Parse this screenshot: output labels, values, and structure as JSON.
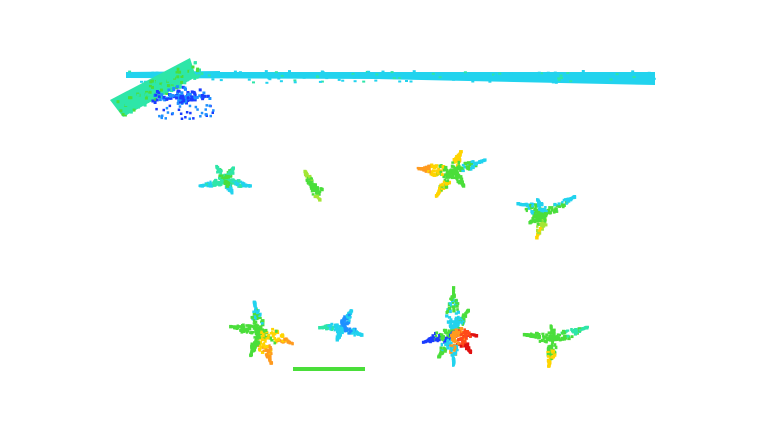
{
  "view": {
    "background": "#ffffff",
    "colormap": "jet",
    "colormap_colors": [
      "#1a3cff",
      "#1e90ff",
      "#22d3ee",
      "#2ee6a8",
      "#4ade3a",
      "#a3e635",
      "#ffd400",
      "#ff9a1f",
      "#ff4a1a",
      "#e01010"
    ]
  },
  "objects": [
    {
      "kind": "bar",
      "label": "long-bar",
      "colors": [
        "#22d3ee",
        "#2ee6a8"
      ]
    },
    {
      "kind": "slab",
      "label": "tilted-slab",
      "colors": [
        "#2ee6a8",
        "#4ade3a"
      ]
    },
    {
      "kind": "cluster",
      "label": "blue-cluster",
      "colors": [
        "#1a3cff",
        "#1e90ff"
      ]
    },
    {
      "kind": "plant",
      "label": "plant-1",
      "colors": [
        "#22d3ee",
        "#4ade3a",
        "#2ee6a8"
      ]
    },
    {
      "kind": "plant",
      "label": "plant-2",
      "colors": [
        "#4ade3a",
        "#a3e635"
      ]
    },
    {
      "kind": "plant",
      "label": "plant-3",
      "colors": [
        "#ffd400",
        "#ff9a1f",
        "#4ade3a",
        "#22d3ee"
      ]
    },
    {
      "kind": "plant",
      "label": "plant-4",
      "colors": [
        "#22d3ee",
        "#4ade3a",
        "#a3e635",
        "#ffd400"
      ]
    },
    {
      "kind": "plant",
      "label": "plant-5",
      "colors": [
        "#4ade3a",
        "#ffd400",
        "#ff9a1f",
        "#22d3ee"
      ]
    },
    {
      "kind": "plant",
      "label": "plant-6",
      "colors": [
        "#1e90ff",
        "#22d3ee",
        "#2ee6a8"
      ]
    },
    {
      "kind": "plant",
      "label": "plant-7",
      "colors": [
        "#22d3ee",
        "#1a3cff",
        "#ff4a1a",
        "#e01010",
        "#ff9a1f",
        "#4ade3a"
      ]
    },
    {
      "kind": "plant",
      "label": "plant-8",
      "colors": [
        "#4ade3a",
        "#2ee6a8",
        "#ffd400"
      ]
    },
    {
      "kind": "bar",
      "label": "short-bar",
      "colors": [
        "#4ade3a"
      ]
    }
  ]
}
